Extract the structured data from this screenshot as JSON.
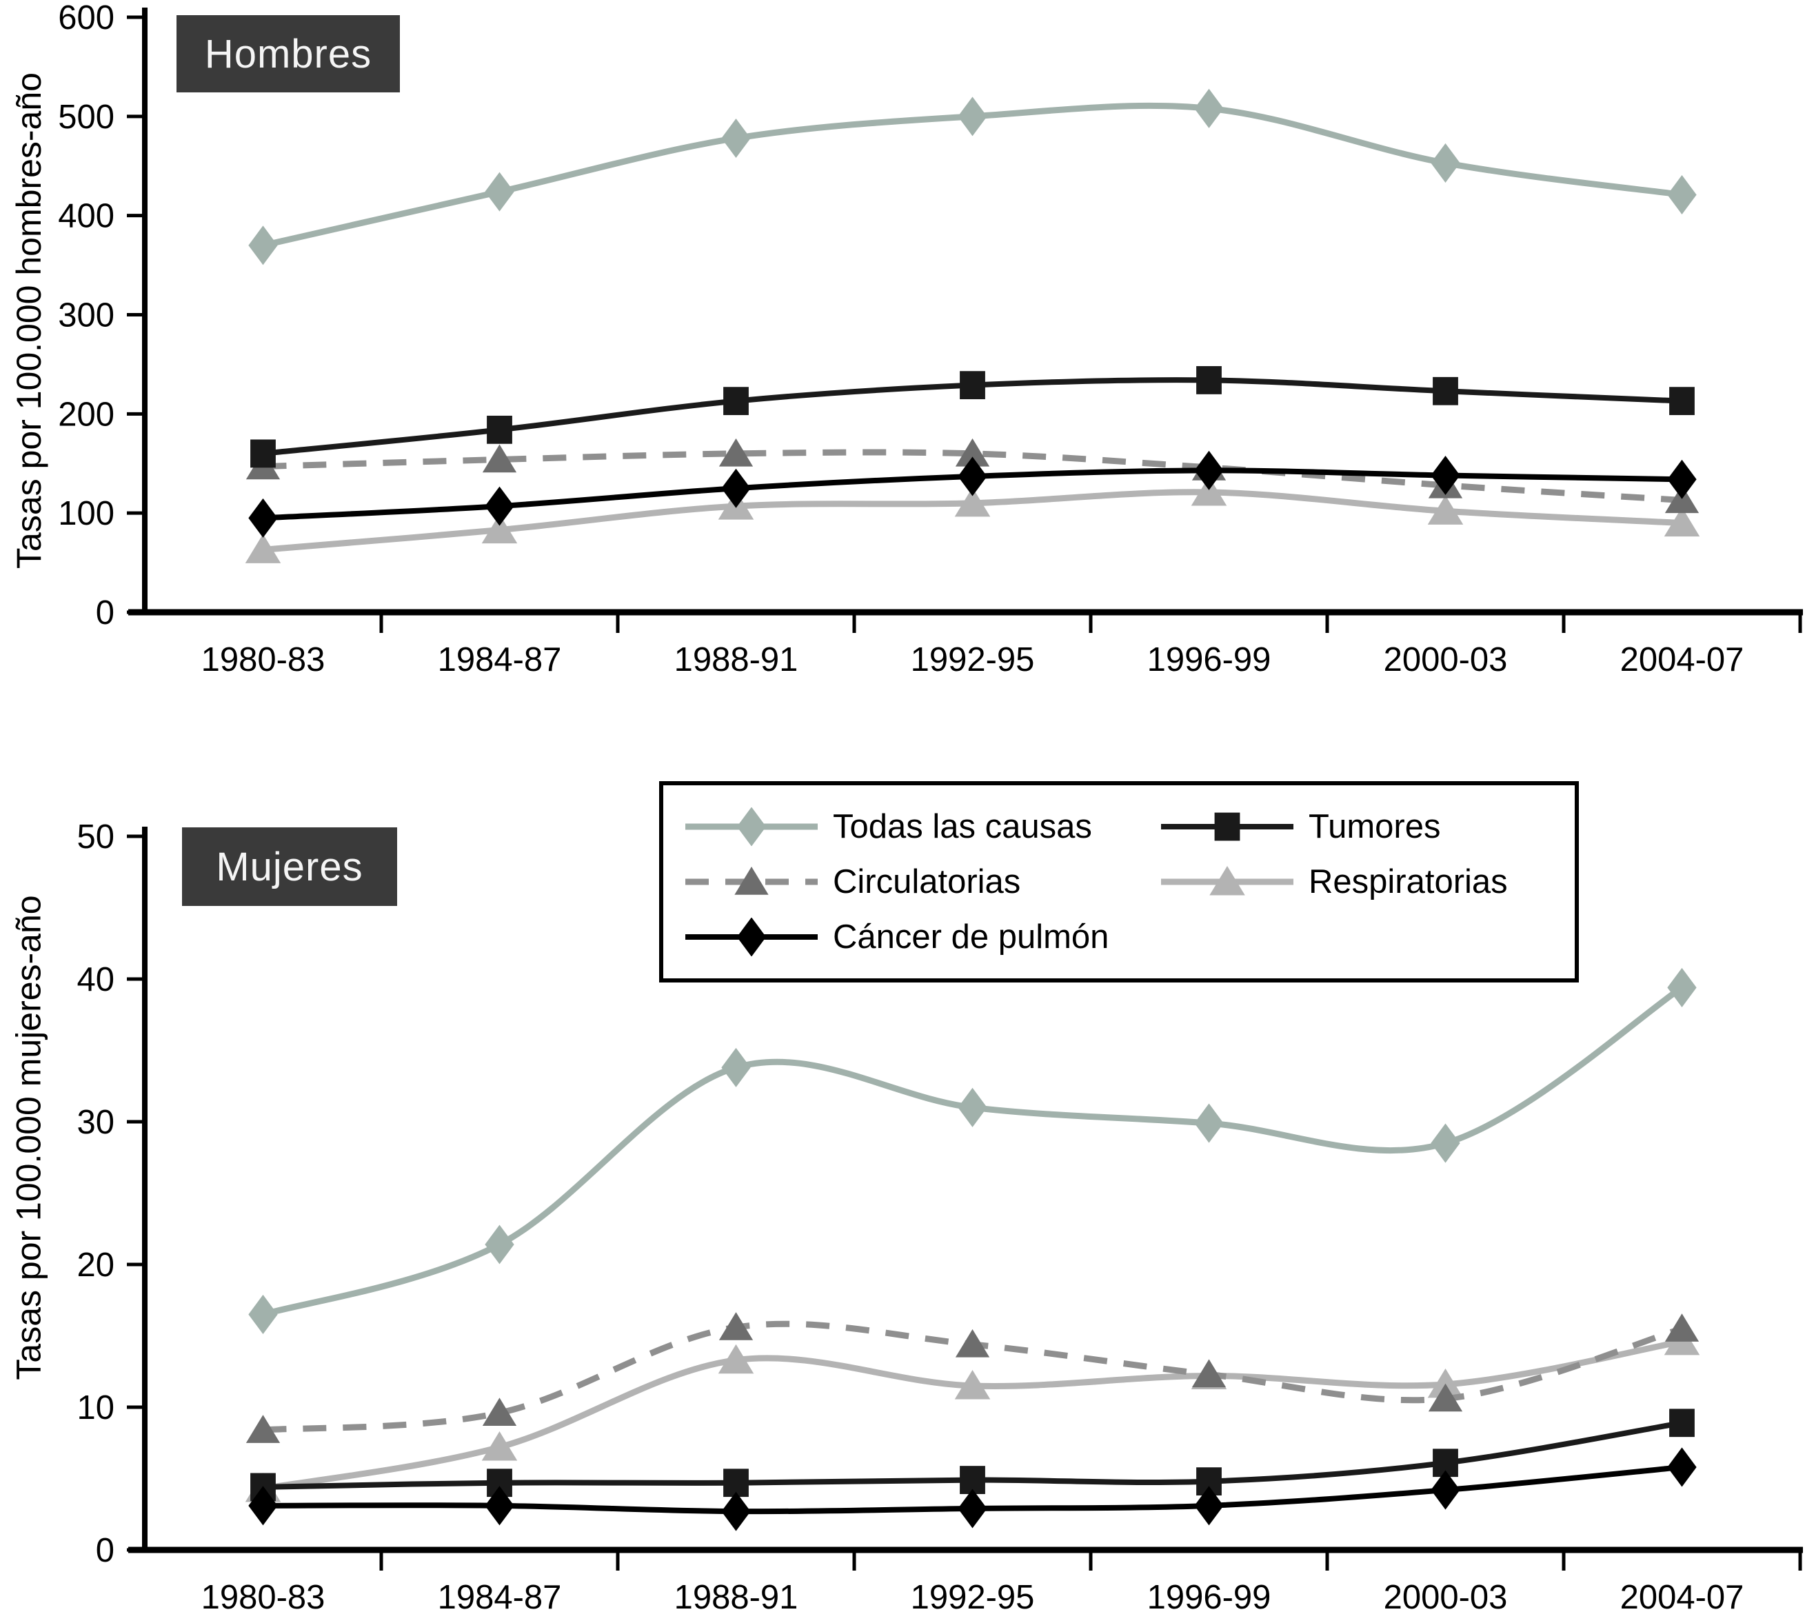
{
  "figure": {
    "panels": [
      {
        "title": "Hombres",
        "ylabel": "Tasas por 100.000 hombres-año"
      },
      {
        "title": "Mujeres",
        "ylabel": "Tasas por 100.000 mujeres-año"
      }
    ],
    "legend": {
      "items": [
        {
          "label": "Todas las causas",
          "series": "todas"
        },
        {
          "label": "Tumores",
          "series": "tumores"
        },
        {
          "label": "Circulatorias",
          "series": "circulatorias"
        },
        {
          "label": "Respiratorias",
          "series": "respiratorias"
        },
        {
          "label": "Cáncer de pulmón",
          "series": "pulmon"
        }
      ]
    },
    "colors": {
      "todas": "#a1b1ab",
      "tumores": "#1a1a1a",
      "circulatorias_line": "#8f8f8f",
      "circulatorias_marker": "#6d6d6d",
      "respiratorias": "#b3b3b3",
      "pulmon": "#000000",
      "panel_label_bg": "#3a3a3a",
      "panel_label_text": "#f5f5f5",
      "axis": "#000000"
    },
    "series_styles": {
      "todas": {
        "color": "#a1b1ab",
        "marker": "diamond",
        "marker_color": "#a1b1ab",
        "dash": null,
        "width": 9,
        "marker_size": 46
      },
      "tumores": {
        "color": "#1a1a1a",
        "marker": "square",
        "marker_color": "#1a1a1a",
        "dash": null,
        "width": 8,
        "marker_size": 40
      },
      "circulatorias": {
        "color": "#8f8f8f",
        "marker": "triangle",
        "marker_color": "#6d6d6d",
        "dash": "34 24",
        "width": 9,
        "marker_size": 44
      },
      "respiratorias": {
        "color": "#b3b3b3",
        "marker": "triangle",
        "marker_color": "#b3b3b3",
        "dash": null,
        "width": 9,
        "marker_size": 46
      },
      "pulmon": {
        "color": "#000000",
        "marker": "diamond",
        "marker_color": "#000000",
        "dash": null,
        "width": 8,
        "marker_size": 46
      }
    },
    "draw_order": [
      "respiratorias",
      "circulatorias",
      "tumores",
      "pulmon",
      "todas"
    ]
  },
  "chart_data": [
    {
      "type": "line",
      "title": "Hombres",
      "xlabel": "",
      "ylabel": "Tasas por 100.000 hombres-año",
      "categories": [
        "1980-83",
        "1984-87",
        "1988-91",
        "1992-95",
        "1996-99",
        "2000-03",
        "2004-07"
      ],
      "ylim": [
        0,
        600
      ],
      "yticks": [
        0,
        100,
        200,
        300,
        400,
        500,
        600
      ],
      "grid": false,
      "legend_position": "shared-box-between-panels",
      "series": [
        {
          "name": "Todas las causas",
          "key": "todas",
          "values": [
            370,
            424,
            478,
            500,
            508,
            453,
            421
          ]
        },
        {
          "name": "Tumores",
          "key": "tumores",
          "values": [
            160,
            184,
            213,
            229,
            234,
            223,
            213
          ]
        },
        {
          "name": "Circulatorias",
          "key": "circulatorias",
          "values": [
            147,
            154,
            160,
            160,
            146,
            128,
            113
          ]
        },
        {
          "name": "Respiratorias",
          "key": "respiratorias",
          "values": [
            63,
            83,
            107,
            110,
            121,
            102,
            90
          ]
        },
        {
          "name": "Cáncer de pulmón",
          "key": "pulmon",
          "values": [
            95,
            107,
            125,
            137,
            143,
            138,
            134
          ]
        }
      ]
    },
    {
      "type": "line",
      "title": "Mujeres",
      "xlabel": "",
      "ylabel": "Tasas por 100.000 mujeres-año",
      "categories": [
        "1980-83",
        "1984-87",
        "1988-91",
        "1992-95",
        "1996-99",
        "2000-03",
        "2004-07"
      ],
      "ylim": [
        0,
        50
      ],
      "yticks": [
        0,
        10,
        20,
        30,
        40,
        50
      ],
      "grid": false,
      "legend_position": "shared-box-between-panels",
      "series": [
        {
          "name": "Todas las causas",
          "key": "todas",
          "values": [
            16.5,
            21.4,
            33.8,
            31.0,
            29.9,
            28.5,
            39.4
          ]
        },
        {
          "name": "Tumores",
          "key": "tumores",
          "values": [
            4.4,
            4.7,
            4.7,
            4.9,
            4.8,
            6.1,
            8.9
          ]
        },
        {
          "name": "Circulatorias",
          "key": "circulatorias",
          "values": [
            8.4,
            9.6,
            15.6,
            14.4,
            12.3,
            10.6,
            15.5
          ]
        },
        {
          "name": "Respiratorias",
          "key": "respiratorias",
          "values": [
            4.3,
            7.2,
            13.3,
            11.5,
            12.2,
            11.6,
            14.6
          ]
        },
        {
          "name": "Cáncer de pulmón",
          "key": "pulmon",
          "values": [
            3.1,
            3.1,
            2.7,
            2.9,
            3.1,
            4.2,
            5.8
          ]
        }
      ]
    }
  ]
}
